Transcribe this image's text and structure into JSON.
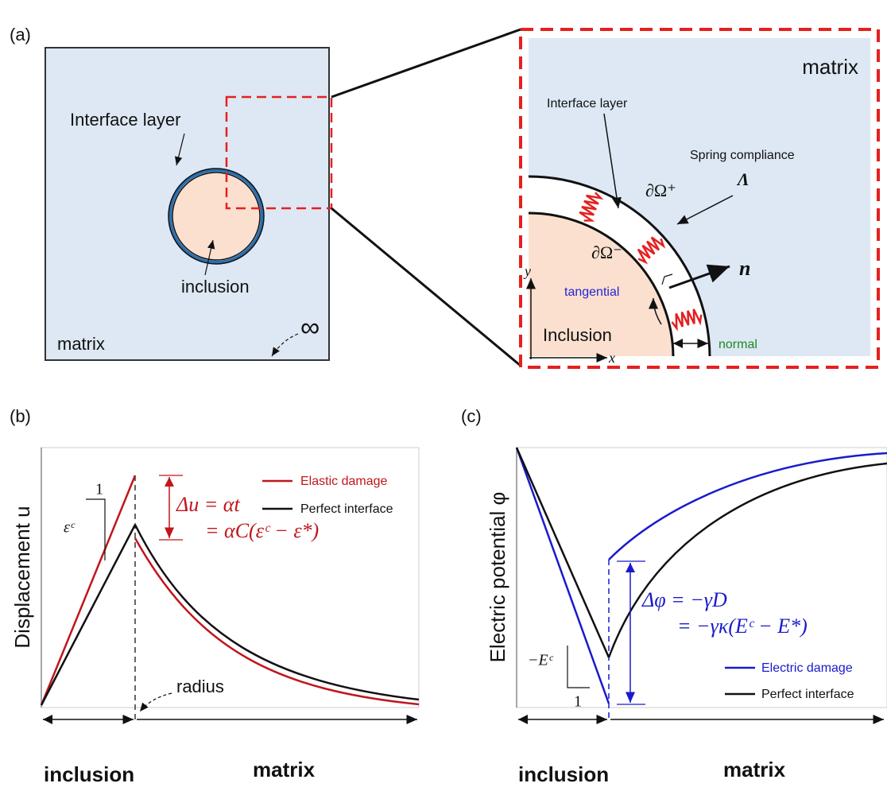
{
  "panels": {
    "a": {
      "label": "(a)",
      "left": {
        "interface_layer": "Interface layer",
        "inclusion": "inclusion",
        "matrix": "matrix",
        "infinity": "∞"
      },
      "zoom": {
        "matrix": "matrix",
        "interface_layer": "Interface layer",
        "spring_compliance": "Spring compliance",
        "lambda": "Λ",
        "outer_boundary": "∂Ω⁺",
        "inner_boundary": "∂Ω⁻",
        "normal_vector": "n",
        "tangential": "tangential",
        "inclusion": "Inclusion",
        "normal": "normal",
        "y_axis": "y",
        "x_axis": "x"
      }
    },
    "b": {
      "label": "(b)",
      "y_label": "Displacement u",
      "legend": [
        "Elastic damage",
        "Perfect interface"
      ],
      "jump_line1": "Δu = αt",
      "jump_line2": "= αC(εᶜ − ε*)",
      "slope_one": "1",
      "slope_label": "εᶜ",
      "radius": "radius",
      "region_inclusion": "inclusion",
      "region_matrix": "matrix"
    },
    "c": {
      "label": "(c)",
      "y_label": "Electric potential φ",
      "legend": [
        "Electric damage",
        "Perfect interface"
      ],
      "jump_line1": "Δφ = −γD",
      "jump_line2": "= −γκ(Eᶜ − E*)",
      "slope_one": "1",
      "slope_label": "−Eᶜ",
      "region_inclusion": "inclusion",
      "region_matrix": "matrix"
    }
  }
}
